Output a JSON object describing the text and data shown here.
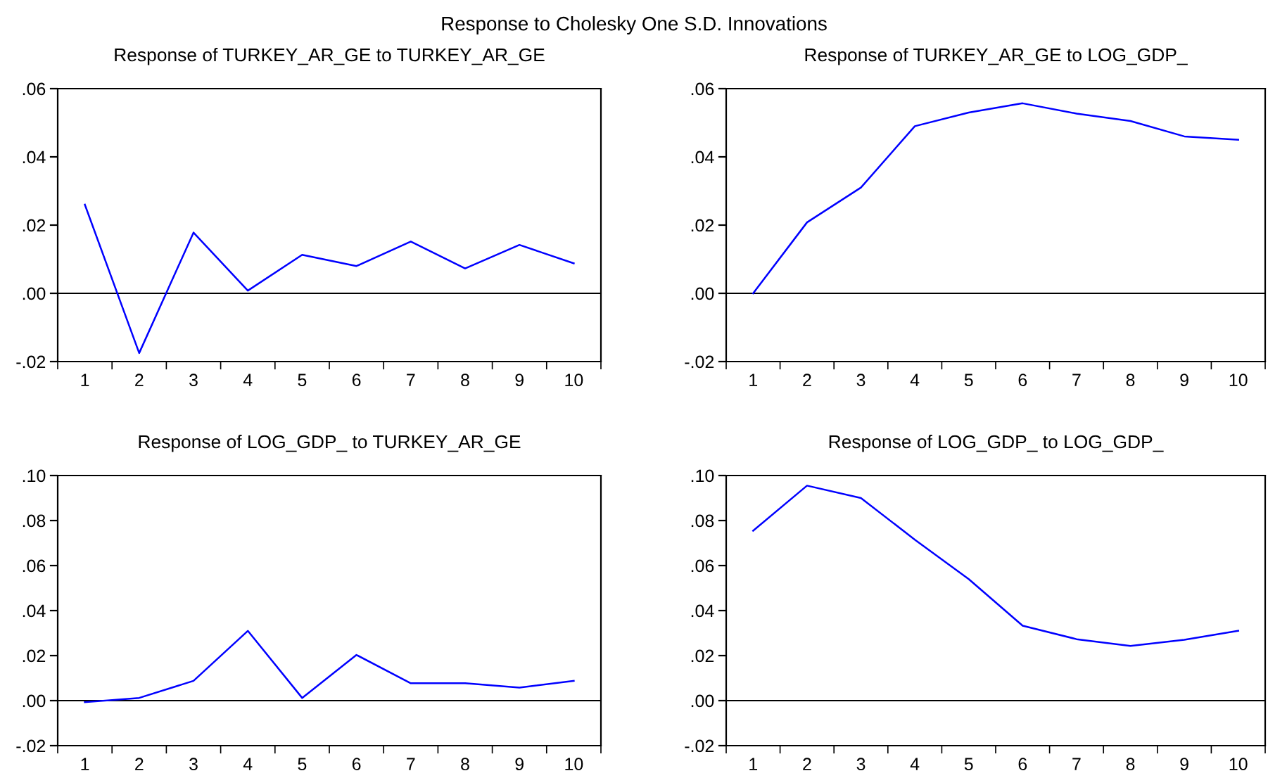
{
  "chart_data": [
    {
      "type": "line",
      "title": "Response of TURKEY_AR_GE to TURKEY_AR_GE",
      "annotations": [
        "Response to Cholesky One S.D. Innovations"
      ],
      "categories": [
        "1",
        "2",
        "3",
        "4",
        "5",
        "6",
        "7",
        "8",
        "9",
        "10"
      ],
      "series": [
        {
          "color": "#0000ff",
          "values": [
            0.026,
            -0.0175,
            0.0178,
            0.0008,
            0.0113,
            0.008,
            0.0152,
            0.0073,
            0.0142,
            0.0088
          ]
        }
      ],
      "ylim": [
        -0.02,
        0.06
      ],
      "yticks": [
        {
          "value": -0.02,
          "label": "-.02"
        },
        {
          "value": 0,
          "label": ".00"
        },
        {
          "value": 0.02,
          "label": ".02"
        },
        {
          "value": 0.04,
          "label": ".04"
        },
        {
          "value": 0.06,
          "label": ".06"
        }
      ],
      "ref_lines": [
        {
          "axis": "y",
          "value": 0,
          "color": "#000000"
        }
      ]
    },
    {
      "type": "line",
      "title": "Response of TURKEY_AR_GE to LOG_GDP_",
      "categories": [
        "1",
        "2",
        "3",
        "4",
        "5",
        "6",
        "7",
        "8",
        "9",
        "10"
      ],
      "series": [
        {
          "color": "#0000ff",
          "values": [
            0.0,
            0.0208,
            0.031,
            0.049,
            0.053,
            0.0557,
            0.0527,
            0.0505,
            0.046,
            0.045
          ]
        }
      ],
      "ylim": [
        -0.02,
        0.06
      ],
      "yticks": [
        {
          "value": -0.02,
          "label": "-.02"
        },
        {
          "value": 0,
          "label": ".00"
        },
        {
          "value": 0.02,
          "label": ".02"
        },
        {
          "value": 0.04,
          "label": ".04"
        },
        {
          "value": 0.06,
          "label": ".06"
        }
      ],
      "ref_lines": [
        {
          "axis": "y",
          "value": 0,
          "color": "#000000"
        }
      ]
    },
    {
      "type": "line",
      "title": "Response of LOG_GDP_ to TURKEY_AR_GE",
      "categories": [
        "1",
        "2",
        "3",
        "4",
        "5",
        "6",
        "7",
        "8",
        "9",
        "10"
      ],
      "series": [
        {
          "color": "#0000ff",
          "values": [
            -0.0007,
            0.0012,
            0.0088,
            0.031,
            0.0012,
            0.0203,
            0.0077,
            0.0077,
            0.0058,
            0.0088
          ]
        }
      ],
      "ylim": [
        -0.02,
        0.1
      ],
      "yticks": [
        {
          "value": -0.02,
          "label": "-.02"
        },
        {
          "value": 0,
          "label": ".00"
        },
        {
          "value": 0.02,
          "label": ".02"
        },
        {
          "value": 0.04,
          "label": ".04"
        },
        {
          "value": 0.06,
          "label": ".06"
        },
        {
          "value": 0.08,
          "label": ".08"
        },
        {
          "value": 0.1,
          "label": ".10"
        }
      ],
      "ref_lines": [
        {
          "axis": "y",
          "value": 0,
          "color": "#000000"
        }
      ]
    },
    {
      "type": "line",
      "title": "Response of LOG_GDP_ to LOG_GDP_",
      "categories": [
        "1",
        "2",
        "3",
        "4",
        "5",
        "6",
        "7",
        "8",
        "9",
        "10"
      ],
      "series": [
        {
          "color": "#0000ff",
          "values": [
            0.0755,
            0.0955,
            0.09,
            0.0715,
            0.054,
            0.0333,
            0.0273,
            0.0243,
            0.027,
            0.031
          ]
        }
      ],
      "ylim": [
        -0.02,
        0.1
      ],
      "yticks": [
        {
          "value": -0.02,
          "label": "-.02"
        },
        {
          "value": 0,
          "label": ".00"
        },
        {
          "value": 0.02,
          "label": ".02"
        },
        {
          "value": 0.04,
          "label": ".04"
        },
        {
          "value": 0.06,
          "label": ".06"
        },
        {
          "value": 0.08,
          "label": ".08"
        },
        {
          "value": 0.1,
          "label": ".10"
        }
      ],
      "ref_lines": [
        {
          "axis": "y",
          "value": 0,
          "color": "#000000"
        }
      ]
    }
  ]
}
